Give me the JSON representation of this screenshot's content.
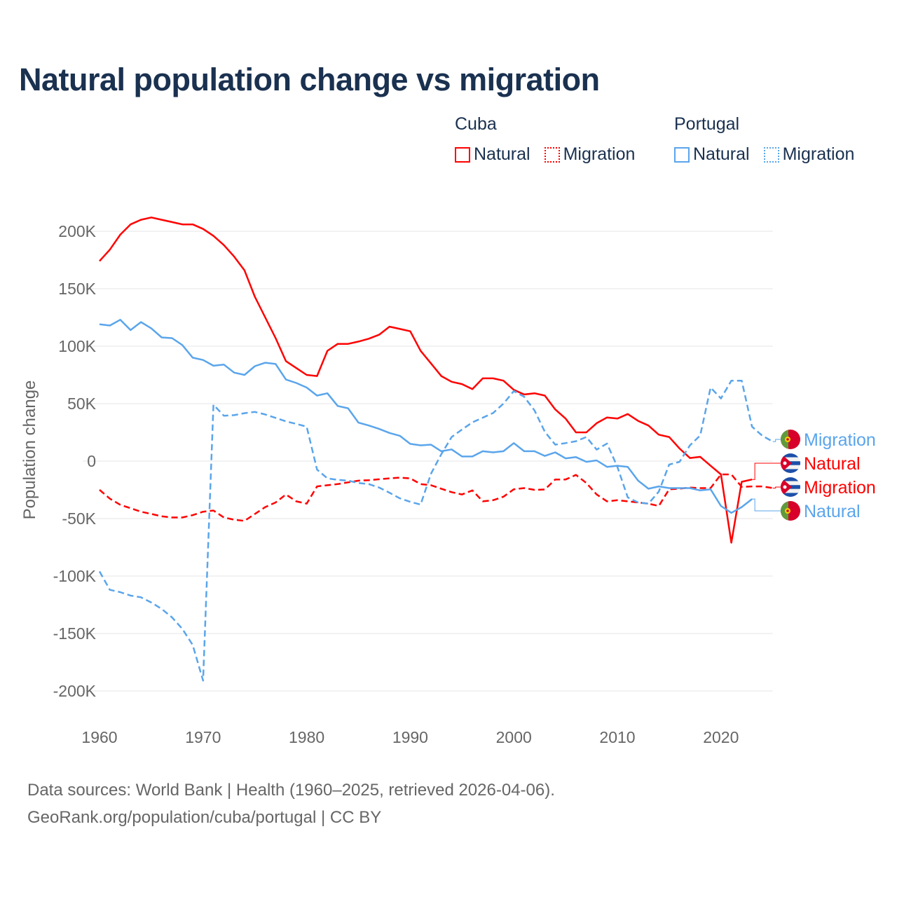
{
  "title": "Natural population change vs migration",
  "legend": {
    "groups": [
      {
        "name": "Cuba",
        "items": [
          {
            "label": "Natural",
            "style": "solid"
          },
          {
            "label": "Migration",
            "style": "dotted"
          }
        ],
        "color": "#ff0000"
      },
      {
        "name": "Portugal",
        "items": [
          {
            "label": "Natural",
            "style": "solid"
          },
          {
            "label": "Migration",
            "style": "dotted"
          }
        ],
        "color": "#5aa5eb"
      }
    ]
  },
  "source": {
    "line1": "Data sources: World Bank | Health (1960–2025, retrieved 2026-04-06).",
    "line2": "GeoRank.org/population/cuba/portugal | CC BY"
  },
  "chart_data": {
    "type": "line",
    "title": "Natural population change vs migration",
    "xlabel": "",
    "ylabel": "Population change",
    "xlim": [
      1960,
      2025
    ],
    "ylim": [
      -200000,
      200000
    ],
    "x_ticks": [
      1960,
      1970,
      1980,
      1990,
      2000,
      2010,
      2020
    ],
    "x_tick_labels": [
      "1960",
      "1970",
      "1980",
      "1990",
      "2000",
      "2010",
      "2020"
    ],
    "y_ticks": [
      200000,
      150000,
      100000,
      50000,
      0,
      -50000,
      -100000,
      -150000,
      -200000
    ],
    "y_tick_labels": [
      "200K",
      "150K",
      "100K",
      "50K",
      "0",
      "-50K",
      "-100K",
      "-150K",
      "-200K"
    ],
    "grid": true,
    "start_year": 1960,
    "series": [
      {
        "name": "Cuba Natural",
        "country": "Cuba",
        "end_label": "Natural",
        "color": "#ff0000",
        "dash": false,
        "flag": "cuba",
        "values": [
          174000,
          184000,
          197000,
          206000,
          210000,
          212000,
          210000,
          208000,
          206000,
          206000,
          202000,
          196000,
          188000,
          178000,
          166000,
          143000,
          125000,
          107000,
          87000,
          81000,
          75000,
          74000,
          96000,
          102000,
          102000,
          104000,
          106500,
          110000,
          117000,
          115000,
          113000,
          96000,
          85000,
          74000,
          69000,
          67000,
          62600,
          72000,
          72000,
          70000,
          62000,
          58000,
          59000,
          57000,
          45000,
          37000,
          25000,
          25000,
          33000,
          38000,
          37000,
          41000,
          35000,
          31000,
          23000,
          21000,
          11000,
          2700,
          3700,
          -4000,
          -11600,
          -71000,
          -18000,
          -16000
        ]
      },
      {
        "name": "Cuba Migration",
        "country": "Cuba",
        "end_label": "Migration",
        "color": "#ff0000",
        "dash": true,
        "flag": "cuba",
        "values": [
          -25000,
          -32700,
          -38000,
          -41000,
          -44000,
          -46000,
          -48000,
          -49000,
          -49000,
          -47000,
          -44000,
          -43000,
          -49000,
          -51000,
          -52000,
          -46000,
          -40000,
          -36000,
          -29000,
          -35000,
          -37000,
          -22000,
          -21000,
          -20000,
          -18500,
          -17000,
          -16600,
          -15800,
          -15000,
          -14400,
          -15000,
          -20000,
          -21000,
          -24000,
          -27000,
          -29000,
          -25500,
          -35000,
          -34000,
          -31000,
          -24500,
          -23500,
          -25000,
          -24700,
          -16000,
          -16000,
          -12000,
          -19000,
          -29000,
          -35000,
          -34000,
          -35000,
          -36000,
          -37000,
          -39000,
          -24500,
          -24000,
          -23000,
          -23500,
          -23500,
          -11600,
          -11600,
          -22400,
          -22000,
          -22000,
          -23500
        ]
      },
      {
        "name": "Portugal Natural",
        "country": "Portugal",
        "end_label": "Natural",
        "color": "#5aa5eb",
        "dash": false,
        "flag": "portugal",
        "values": [
          119000,
          118000,
          123000,
          114000,
          121000,
          115500,
          107600,
          107000,
          101000,
          90000,
          88000,
          83000,
          84000,
          77000,
          75000,
          82600,
          85600,
          84500,
          71000,
          68000,
          64000,
          57000,
          59000,
          48000,
          46000,
          33500,
          31000,
          28000,
          24500,
          22000,
          15000,
          13700,
          14300,
          8600,
          10200,
          4000,
          4000,
          8600,
          7600,
          8600,
          15700,
          8600,
          8600,
          4500,
          7600,
          2400,
          3500,
          -600,
          600,
          -5000,
          -4000,
          -5000,
          -17000,
          -24000,
          -22000,
          -23500,
          -23500,
          -23500,
          -25500,
          -24500,
          -39000,
          -45000,
          -40000,
          -33000
        ]
      },
      {
        "name": "Portugal Migration",
        "country": "Portugal",
        "end_label": "Migration",
        "color": "#5aa5eb",
        "dash": true,
        "flag": "portugal",
        "values": [
          -96000,
          -112000,
          -114000,
          -117000,
          -118500,
          -123000,
          -128600,
          -136000,
          -146000,
          -160000,
          -191000,
          49000,
          39500,
          40000,
          41700,
          42800,
          40600,
          37600,
          34600,
          32400,
          30000,
          -7400,
          -15000,
          -16300,
          -17000,
          -19000,
          -20000,
          -23000,
          -27500,
          -32400,
          -35400,
          -37800,
          -11000,
          6000,
          21000,
          27500,
          33700,
          37800,
          41800,
          50000,
          61000,
          56000,
          44000,
          25500,
          14300,
          15700,
          17300,
          21000,
          10000,
          15300,
          -5000,
          -31600,
          -36000,
          -37000,
          -26500,
          -3000,
          -600,
          13700,
          22400,
          64000,
          54500,
          70000,
          70000,
          30000,
          22000,
          17000
        ]
      }
    ],
    "end_labels_order": [
      "Portugal Migration",
      "Cuba Natural",
      "Cuba Migration",
      "Portugal Natural"
    ]
  }
}
